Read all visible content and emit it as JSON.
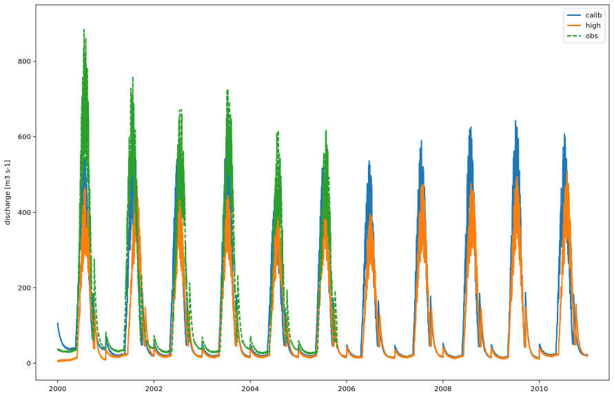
{
  "chart_data": {
    "type": "line",
    "title": "",
    "xlabel": "",
    "ylabel": "discharge [m3 s-1]",
    "xlim": [
      1999.55,
      2011.45
    ],
    "ylim": [
      -45,
      950
    ],
    "xticks": [
      2000,
      2002,
      2004,
      2006,
      2008,
      2010
    ],
    "xtick_labels": [
      "2000",
      "2002",
      "2004",
      "2006",
      "2008",
      "2010"
    ],
    "yticks": [
      0,
      200,
      400,
      600,
      800
    ],
    "ytick_labels": [
      "0",
      "200",
      "400",
      "600",
      "800"
    ],
    "grid": false,
    "legend_position": "top-right",
    "series": [
      {
        "name": "calib",
        "color": "#1f77b4",
        "style": "solid",
        "start": 2000.0,
        "end": 2011.0,
        "first_value": 108,
        "peaks": [
          {
            "year": 2000,
            "peak": 560,
            "peak_time": 0.6,
            "base": 35
          },
          {
            "year": 2001,
            "peak": 630,
            "peak_time": 0.62,
            "base": 18
          },
          {
            "year": 2002,
            "peak": 560,
            "peak_time": 0.55,
            "base": 18
          },
          {
            "year": 2003,
            "peak": 605,
            "peak_time": 0.57,
            "base": 17
          },
          {
            "year": 2004,
            "peak": 470,
            "peak_time": 0.58,
            "base": 17
          },
          {
            "year": 2005,
            "peak": 560,
            "peak_time": 0.58,
            "base": 17
          },
          {
            "year": 2006,
            "peak": 540,
            "peak_time": 0.52,
            "base": 15
          },
          {
            "year": 2007,
            "peak": 605,
            "peak_time": 0.6,
            "base": 16
          },
          {
            "year": 2008,
            "peak": 630,
            "peak_time": 0.62,
            "base": 14
          },
          {
            "year": 2009,
            "peak": 655,
            "peak_time": 0.57,
            "base": 13
          },
          {
            "year": 2010,
            "peak": 610,
            "peak_time": 0.57,
            "base": 20
          }
        ],
        "end_value": 25
      },
      {
        "name": "high",
        "color": "#ff7f0e",
        "style": "solid",
        "start": 2000.0,
        "end": 2011.0,
        "first_value": 5,
        "peaks": [
          {
            "year": 2000,
            "peak": 480,
            "peak_time": 0.63,
            "base": 8
          },
          {
            "year": 2001,
            "peak": 490,
            "peak_time": 0.68,
            "base": 16
          },
          {
            "year": 2002,
            "peak": 440,
            "peak_time": 0.58,
            "base": 16
          },
          {
            "year": 2003,
            "peak": 450,
            "peak_time": 0.58,
            "base": 15
          },
          {
            "year": 2004,
            "peak": 400,
            "peak_time": 0.62,
            "base": 15
          },
          {
            "year": 2005,
            "peak": 475,
            "peak_time": 0.6,
            "base": 15
          },
          {
            "year": 2006,
            "peak": 405,
            "peak_time": 0.55,
            "base": 14
          },
          {
            "year": 2007,
            "peak": 485,
            "peak_time": 0.62,
            "base": 15
          },
          {
            "year": 2008,
            "peak": 495,
            "peak_time": 0.65,
            "base": 13
          },
          {
            "year": 2009,
            "peak": 500,
            "peak_time": 0.58,
            "base": 12
          },
          {
            "year": 2010,
            "peak": 510,
            "peak_time": 0.62,
            "base": 18
          }
        ],
        "end_value": 20
      },
      {
        "name": "obs",
        "color": "#2ca02c",
        "style": "dashed",
        "start": 2000.0,
        "end": 2005.8,
        "first_value": 38,
        "peaks": [
          {
            "year": 2000,
            "peak": 905,
            "peak_time": 0.62,
            "base": 30
          },
          {
            "year": 2001,
            "peak": 770,
            "peak_time": 0.6,
            "base": 30
          },
          {
            "year": 2002,
            "peak": 690,
            "peak_time": 0.6,
            "base": 28
          },
          {
            "year": 2003,
            "peak": 770,
            "peak_time": 0.6,
            "base": 28
          },
          {
            "year": 2004,
            "peak": 628,
            "peak_time": 0.62,
            "base": 25
          },
          {
            "year": 2005,
            "peak": 620,
            "peak_time": 0.62,
            "base": 25
          }
        ],
        "end_value": 40
      }
    ]
  }
}
